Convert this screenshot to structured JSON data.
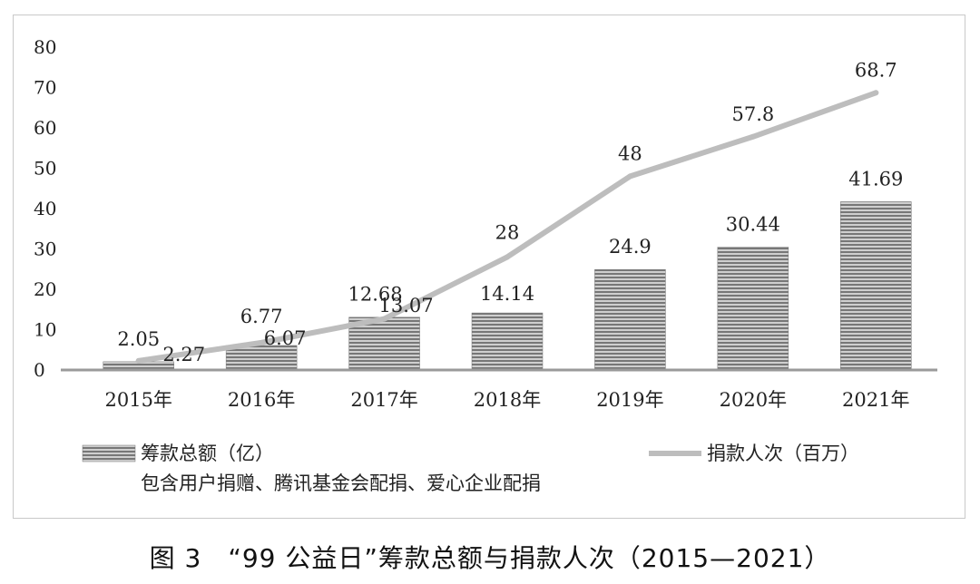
{
  "caption": "图 3　“99 公益日”筹款总额与捐款人次（2015—2021）",
  "colors": {
    "bar": "#777777",
    "bar_stripe": "#cfcfcf",
    "line": "#bdbdbd",
    "axis": "#9a9a9a",
    "text": "#222222"
  },
  "chart_data": {
    "type": "bar",
    "categories": [
      "2015年",
      "2016年",
      "2017年",
      "2018年",
      "2019年",
      "2020年",
      "2021年"
    ],
    "ylim": [
      0,
      80
    ],
    "yticks": [
      "0",
      "10",
      "20",
      "30",
      "40",
      "50",
      "60",
      "70",
      "80"
    ],
    "series": [
      {
        "name": "筹款总额（亿）",
        "legend_note": "包含用户捐赠、腾讯基金会配捐、爱心企业配捐",
        "type": "bar",
        "values": [
          2.05,
          6.07,
          13.07,
          14.14,
          24.9,
          30.44,
          41.69
        ],
        "labels": [
          "2.05",
          "6.07",
          "13.07",
          "14.14",
          "24.9",
          "30.44",
          "41.69"
        ]
      },
      {
        "name": "捐款人次（百万）",
        "type": "line",
        "values": [
          2.27,
          6.77,
          12.68,
          28,
          48,
          57.8,
          68.7
        ],
        "labels": [
          "2.27",
          "6.77",
          "12.68",
          "28",
          "48",
          "57.8",
          "68.7"
        ]
      }
    ],
    "legend_position": "bottom",
    "grid": false
  }
}
